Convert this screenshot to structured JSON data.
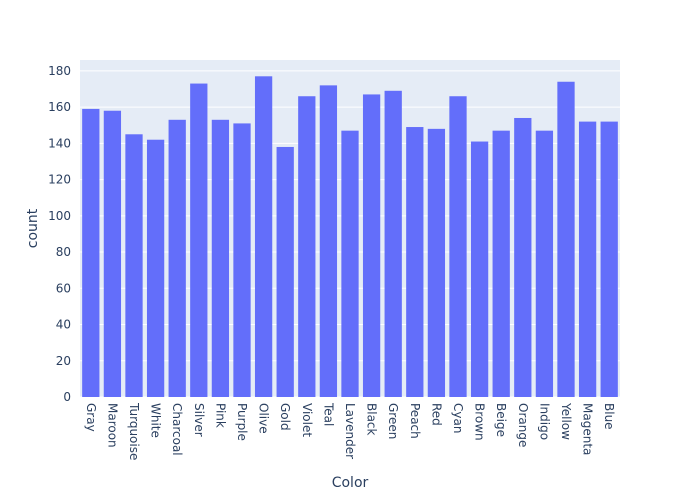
{
  "chart_data": {
    "type": "bar",
    "xlabel": "Color",
    "ylabel": "count",
    "ylim": [
      0,
      186
    ],
    "yticks": [
      0,
      20,
      40,
      60,
      80,
      100,
      120,
      140,
      160,
      180
    ],
    "grid": true,
    "categories": [
      "Gray",
      "Maroon",
      "Turquoise",
      "White",
      "Charcoal",
      "Silver",
      "Pink",
      "Purple",
      "Olive",
      "Gold",
      "Violet",
      "Teal",
      "Lavender",
      "Black",
      "Green",
      "Peach",
      "Red",
      "Cyan",
      "Brown",
      "Beige",
      "Orange",
      "Indigo",
      "Yellow",
      "Magenta",
      "Blue"
    ],
    "values": [
      159,
      158,
      145,
      142,
      153,
      173,
      153,
      151,
      177,
      138,
      166,
      172,
      147,
      167,
      169,
      149,
      148,
      166,
      141,
      147,
      154,
      147,
      174,
      152,
      152
    ],
    "colors": {
      "bar": "#636efa",
      "plot_background": "#e5ecf6",
      "grid": "#ffffff",
      "text": "#2a3f5f"
    }
  }
}
